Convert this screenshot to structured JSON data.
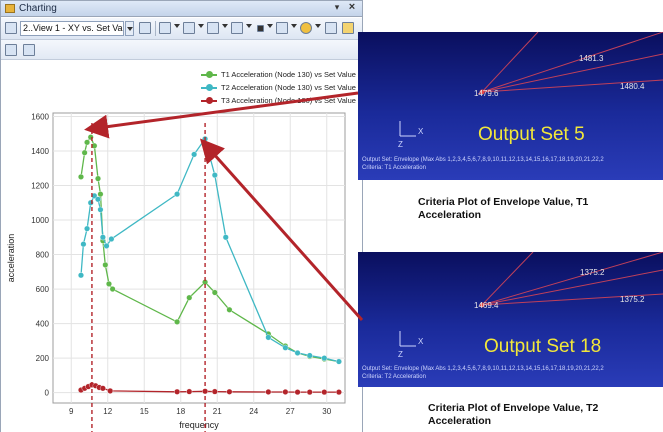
{
  "window": {
    "title": "Charting",
    "pin_glyph": "▾",
    "close_glyph": "×",
    "view_select_value": "2..View 1 - XY vs. Set Valu",
    "toolbar_icon_names": [
      "chart-icon",
      "select-icon",
      "axes-icon",
      "titles-icon",
      "label-icon",
      "grid-icon",
      "marker-icon",
      "legend-icon",
      "color-icon",
      "export-icon",
      "print-icon"
    ],
    "toolbar2_icon_names": [
      "edit-icon",
      "table-icon"
    ]
  },
  "chart_data": {
    "type": "line",
    "xlabel": "frequency",
    "ylabel": "acceleration",
    "xlim": [
      7.5,
      31.5
    ],
    "ylim": [
      -60,
      1620
    ],
    "x_ticks": [
      9,
      12,
      15,
      18,
      21,
      24,
      27,
      30
    ],
    "y_ticks": [
      0,
      200,
      400,
      600,
      800,
      1000,
      1200,
      1400,
      1600
    ],
    "grid": true,
    "legend_position": "top-right",
    "series": [
      {
        "name": "T1 Acceleration (Node 130) vs Set Value",
        "color": "#5fb74a",
        "x": [
          9.8,
          10.1,
          10.3,
          10.6,
          10.9,
          11.2,
          11.4,
          11.6,
          11.8,
          12.1,
          12.4,
          17.7,
          18.7,
          20.0,
          20.8,
          22.0,
          25.2,
          26.6,
          27.6,
          28.6,
          29.8,
          31.0
        ],
        "y": [
          1250,
          1390,
          1450,
          1480,
          1430,
          1240,
          1150,
          880,
          740,
          630,
          600,
          410,
          550,
          640,
          580,
          480,
          340,
          270,
          230,
          210,
          195,
          180
        ]
      },
      {
        "name": "T2 Acceleration (Node 130) vs Set Value",
        "color": "#3fb8c4",
        "x": [
          9.8,
          10.0,
          10.3,
          10.6,
          10.9,
          11.2,
          11.4,
          11.6,
          11.9,
          12.3,
          17.7,
          19.1,
          20.0,
          20.8,
          21.7,
          25.2,
          26.6,
          27.6,
          28.6,
          29.8,
          31.0
        ],
        "y": [
          680,
          860,
          950,
          1100,
          1140,
          1120,
          1060,
          900,
          850,
          890,
          1150,
          1380,
          1470,
          1260,
          900,
          320,
          260,
          230,
          215,
          200,
          180
        ]
      },
      {
        "name": "T3 Acceleration (Node 130) vs Set Value",
        "color": "#b3242a",
        "x": [
          9.8,
          10.1,
          10.4,
          10.7,
          11.0,
          11.3,
          11.6,
          12.2,
          17.7,
          18.7,
          20.0,
          20.8,
          22.0,
          25.2,
          26.6,
          27.6,
          28.6,
          29.8,
          31.0
        ],
        "y": [
          15,
          25,
          35,
          45,
          40,
          30,
          25,
          10,
          5,
          6,
          8,
          6,
          5,
          4,
          4,
          3,
          3,
          3,
          3
        ]
      }
    ],
    "markers": [
      10.7,
      20.0
    ]
  },
  "panels": [
    {
      "output_set": "Output Set 5",
      "labels": [
        "1481.3",
        "1480.4",
        "1479.6"
      ],
      "footer_line1": "Output Set: Envelope (Max Abs 1,2,3,4,5,6,7,8,9,10,11,12,13,14,15,16,17,18,19,20,21,22,2",
      "footer_line2": "Criteria: T1 Acceleration",
      "axis_x": "X",
      "axis_z": "Z",
      "caption": "Criteria Plot of Envelope Value, T1 Acceleration"
    },
    {
      "output_set": "Output Set 18",
      "labels": [
        "1375.2",
        "1375.2",
        "1469.4"
      ],
      "footer_line1": "Output Set: Envelope (Max Abs 1,2,3,4,5,6,7,8,9,10,11,12,13,14,15,16,17,18,19,20,21,22,2",
      "footer_line2": "Criteria: T2 Acceleration",
      "axis_x": "X",
      "axis_z": "Z",
      "caption": "Criteria Plot of Envelope Value, T2 Acceleration"
    }
  ]
}
